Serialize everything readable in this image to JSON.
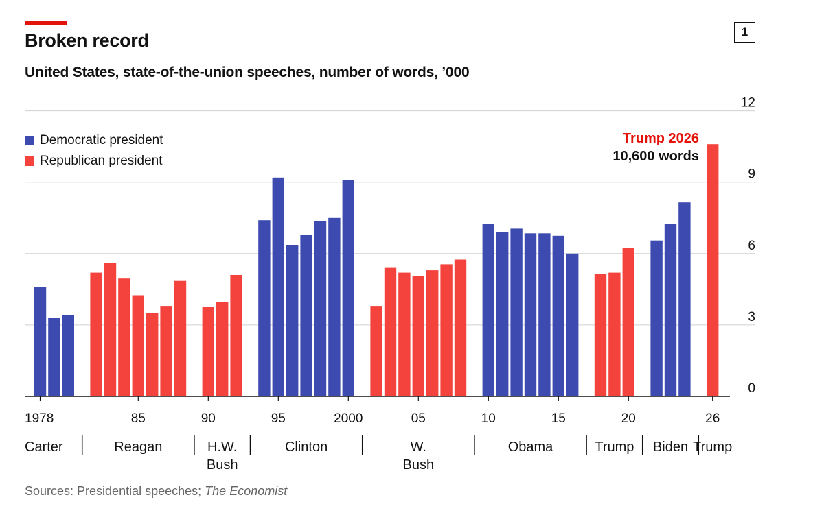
{
  "header": {
    "title": "Broken record",
    "subtitle": "United States, state-of-the-union speeches, number of words, ’000",
    "chart_number": "1"
  },
  "legend": {
    "dem_label": "Democratic president",
    "rep_label": "Republican president"
  },
  "annotation": {
    "line1": "Trump 2026",
    "line2": "10,600 words"
  },
  "source": {
    "prefix": "Sources: Presidential speeches;",
    "publication": "The Economist"
  },
  "colors": {
    "democratic": "#3d4bb0",
    "republican": "#f4423c",
    "accent": "#e3120b",
    "grid": "#d0d0d0",
    "axis": "#121212"
  },
  "chart_data": {
    "type": "bar",
    "title": "Broken record",
    "subtitle": "United States, state-of-the-union speeches, number of words, ’000",
    "ylabel": "number of words, ’000",
    "ylim": [
      0,
      12
    ],
    "y_ticks": [
      "0",
      "3",
      "6",
      "9",
      "12"
    ],
    "y_axis_side": "right",
    "grid": true,
    "x_tick_labels": [
      {
        "year": 1978,
        "label": "1978"
      },
      {
        "year": 1985,
        "label": "85"
      },
      {
        "year": 1990,
        "label": "90"
      },
      {
        "year": 1995,
        "label": "95"
      },
      {
        "year": 2000,
        "label": "2000"
      },
      {
        "year": 2005,
        "label": "05"
      },
      {
        "year": 2010,
        "label": "10"
      },
      {
        "year": 2015,
        "label": "15"
      },
      {
        "year": 2020,
        "label": "20"
      },
      {
        "year": 2026,
        "label": "26"
      }
    ],
    "series": [
      {
        "name": "Democratic president",
        "color": "#3d4bb0",
        "points": [
          {
            "year": 1978,
            "value": 4.6
          },
          {
            "year": 1979,
            "value": 3.3
          },
          {
            "year": 1980,
            "value": 3.4
          },
          {
            "year": 1994,
            "value": 7.4
          },
          {
            "year": 1995,
            "value": 9.2
          },
          {
            "year": 1996,
            "value": 6.35
          },
          {
            "year": 1997,
            "value": 6.8
          },
          {
            "year": 1998,
            "value": 7.35
          },
          {
            "year": 1999,
            "value": 7.5
          },
          {
            "year": 2000,
            "value": 9.1
          },
          {
            "year": 2010,
            "value": 7.25
          },
          {
            "year": 2011,
            "value": 6.9
          },
          {
            "year": 2012,
            "value": 7.05
          },
          {
            "year": 2013,
            "value": 6.85
          },
          {
            "year": 2014,
            "value": 6.85
          },
          {
            "year": 2015,
            "value": 6.75
          },
          {
            "year": 2016,
            "value": 6.0
          },
          {
            "year": 2022,
            "value": 6.55
          },
          {
            "year": 2023,
            "value": 7.25
          },
          {
            "year": 2024,
            "value": 8.15
          }
        ]
      },
      {
        "name": "Republican president",
        "color": "#f4423c",
        "points": [
          {
            "year": 1982,
            "value": 5.2
          },
          {
            "year": 1983,
            "value": 5.6
          },
          {
            "year": 1984,
            "value": 4.95
          },
          {
            "year": 1985,
            "value": 4.25
          },
          {
            "year": 1986,
            "value": 3.5
          },
          {
            "year": 1987,
            "value": 3.8
          },
          {
            "year": 1988,
            "value": 4.85
          },
          {
            "year": 1990,
            "value": 3.75
          },
          {
            "year": 1991,
            "value": 3.95
          },
          {
            "year": 1992,
            "value": 5.1
          },
          {
            "year": 2002,
            "value": 3.8
          },
          {
            "year": 2003,
            "value": 5.4
          },
          {
            "year": 2004,
            "value": 5.2
          },
          {
            "year": 2005,
            "value": 5.05
          },
          {
            "year": 2006,
            "value": 5.3
          },
          {
            "year": 2007,
            "value": 5.55
          },
          {
            "year": 2008,
            "value": 5.75
          },
          {
            "year": 2018,
            "value": 5.15
          },
          {
            "year": 2019,
            "value": 5.2
          },
          {
            "year": 2020,
            "value": 6.25
          },
          {
            "year": 2026,
            "value": 10.6
          }
        ]
      }
    ],
    "presidents": [
      {
        "name": "Carter",
        "start": 1978,
        "end": 1980
      },
      {
        "name": "Reagan",
        "start": 1982,
        "end": 1988
      },
      {
        "name": "H.W. Bush",
        "start": 1990,
        "end": 1992
      },
      {
        "name": "Clinton",
        "start": 1994,
        "end": 2000
      },
      {
        "name": "W. Bush",
        "start": 2002,
        "end": 2008
      },
      {
        "name": "Obama",
        "start": 2010,
        "end": 2016
      },
      {
        "name": "Trump",
        "start": 2018,
        "end": 2020
      },
      {
        "name": "Biden",
        "start": 2022,
        "end": 2024
      },
      {
        "name": "Trump",
        "start": 2026,
        "end": 2026
      }
    ],
    "annotations": [
      "Trump 2026",
      "10,600 words"
    ]
  }
}
